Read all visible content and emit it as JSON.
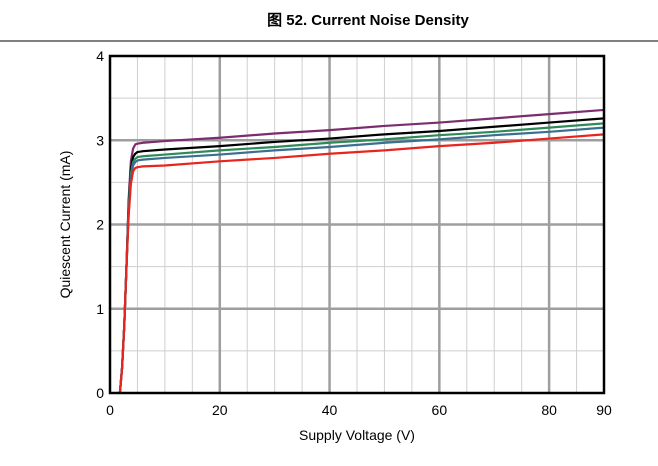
{
  "figure": {
    "caption": "图 52. Current Noise Density"
  },
  "chart_data": {
    "type": "line",
    "title": "",
    "xlabel": "Supply Voltage (V)",
    "ylabel": "Quiescent Current (mA)",
    "xlim": [
      0,
      90
    ],
    "ylim": [
      0,
      4
    ],
    "x_ticks": [
      0,
      20,
      40,
      60,
      80,
      90
    ],
    "y_ticks": [
      0,
      1,
      2,
      3,
      4
    ],
    "grid": true,
    "legend": "none",
    "series": [
      {
        "color": "#7b2d6e",
        "x": [
          1.8,
          2.2,
          2.6,
          3.0,
          3.4,
          3.8,
          4.2,
          4.6,
          5.0,
          6,
          10,
          20,
          30,
          40,
          50,
          60,
          70,
          80,
          90
        ],
        "y": [
          0.0,
          0.3,
          0.8,
          1.5,
          2.3,
          2.75,
          2.9,
          2.95,
          2.96,
          2.97,
          2.99,
          3.03,
          3.08,
          3.12,
          3.17,
          3.21,
          3.26,
          3.31,
          3.36
        ]
      },
      {
        "color": "#000000",
        "x": [
          1.8,
          2.2,
          2.6,
          3.0,
          3.4,
          3.8,
          4.2,
          4.6,
          5.0,
          6,
          10,
          20,
          30,
          40,
          50,
          60,
          70,
          80,
          90
        ],
        "y": [
          0.0,
          0.3,
          0.8,
          1.5,
          2.25,
          2.65,
          2.8,
          2.84,
          2.86,
          2.87,
          2.89,
          2.93,
          2.98,
          3.02,
          3.07,
          3.11,
          3.16,
          3.21,
          3.26
        ]
      },
      {
        "color": "#2e8b57",
        "x": [
          1.8,
          2.2,
          2.6,
          3.0,
          3.4,
          3.8,
          4.2,
          4.6,
          5.0,
          6,
          10,
          20,
          30,
          40,
          50,
          60,
          70,
          80,
          90
        ],
        "y": [
          0.0,
          0.3,
          0.8,
          1.5,
          2.2,
          2.6,
          2.74,
          2.78,
          2.8,
          2.81,
          2.83,
          2.88,
          2.92,
          2.97,
          3.01,
          3.06,
          3.1,
          3.15,
          3.2
        ]
      },
      {
        "color": "#3a6f8f",
        "x": [
          1.8,
          2.2,
          2.6,
          3.0,
          3.4,
          3.8,
          4.2,
          4.6,
          5.0,
          6,
          10,
          20,
          30,
          40,
          50,
          60,
          70,
          80,
          90
        ],
        "y": [
          0.0,
          0.3,
          0.8,
          1.5,
          2.15,
          2.55,
          2.7,
          2.74,
          2.76,
          2.77,
          2.79,
          2.83,
          2.88,
          2.92,
          2.97,
          3.01,
          3.06,
          3.1,
          3.15
        ]
      },
      {
        "color": "#e8241e",
        "x": [
          1.8,
          2.2,
          2.6,
          3.0,
          3.4,
          3.8,
          4.2,
          4.6,
          5.0,
          6,
          10,
          20,
          30,
          40,
          50,
          60,
          70,
          80,
          90
        ],
        "y": [
          0.0,
          0.3,
          0.8,
          1.5,
          2.1,
          2.48,
          2.63,
          2.67,
          2.68,
          2.69,
          2.7,
          2.75,
          2.79,
          2.84,
          2.88,
          2.93,
          2.97,
          3.02,
          3.07
        ]
      }
    ]
  }
}
